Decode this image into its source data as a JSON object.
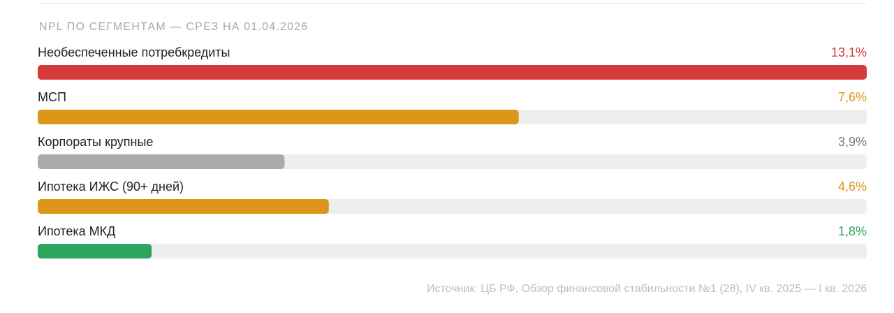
{
  "chart_data": {
    "type": "bar",
    "title": "NPL ПО СЕГМЕНТАМ — СРЕЗ НА 01.04.2026",
    "categories": [
      "Необеспеченные потребкредиты",
      "МСП",
      "Корпораты крупные",
      "Ипотека ИЖС (90+ дней)",
      "Ипотека МКД"
    ],
    "values": [
      13.1,
      7.6,
      3.9,
      4.6,
      1.8
    ],
    "value_labels": [
      "13,1%",
      "7,6%",
      "3,9%",
      "4,6%",
      "1,8%"
    ],
    "colors": [
      "#d63b3b",
      "#dc9419",
      "#aaaaaa",
      "#dc9419",
      "#2aa65f"
    ],
    "value_label_colors": [
      "#d63b3b",
      "#dc9419",
      "#777777",
      "#dc9419",
      "#2aa65f"
    ],
    "xlim": [
      0,
      13.1
    ],
    "source": "Источник: ЦБ РФ, Обзор финансовой стабильности №1 (28), IV кв. 2025 — I кв. 2026"
  }
}
